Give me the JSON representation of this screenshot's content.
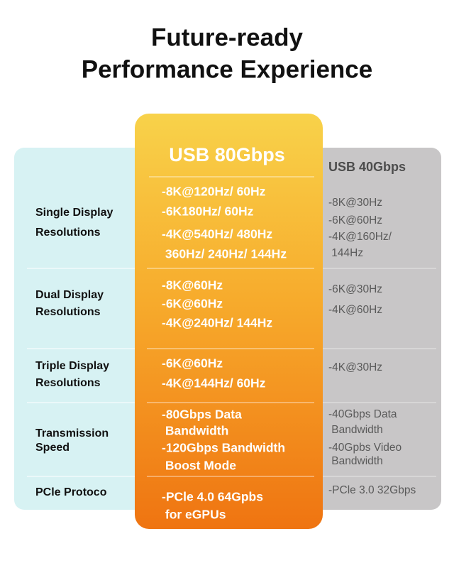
{
  "title": [
    "Future-ready",
    "Performance Experience"
  ],
  "table": {
    "columns": [
      "USB 80Gbps",
      "USB 40Gbps"
    ],
    "rows": [
      {
        "label": [
          "Single Display",
          "Resolutions"
        ],
        "usb80": [
          "-8K@120Hz/ 60Hz",
          "-6K180Hz/ 60Hz",
          "-4K@540Hz/ 480Hz",
          " 360Hz/ 240Hz/ 144Hz"
        ],
        "usb40": [
          "-8K@30Hz",
          "-6K@60Hz",
          "-4K@160Hz/",
          " 144Hz"
        ]
      },
      {
        "label": [
          "Dual Display",
          "Resolutions"
        ],
        "usb80": [
          "-8K@60Hz",
          "-6K@60Hz",
          "-4K@240Hz/ 144Hz"
        ],
        "usb40": [
          "-6K@30Hz",
          "-4K@60Hz"
        ]
      },
      {
        "label": [
          "Triple Display",
          "Resolutions"
        ],
        "usb80": [
          "-6K@60Hz",
          "-4K@144Hz/ 60Hz"
        ],
        "usb40": [
          "-4K@30Hz"
        ]
      },
      {
        "label": [
          "Transmission",
          "Speed"
        ],
        "usb80": [
          "-80Gbps Data",
          " Bandwidth",
          "-120Gbps Bandwidth",
          " Boost Mode"
        ],
        "usb40": [
          "-40Gbps Data",
          " Bandwidth",
          "-40Gpbs Video",
          " Bandwidth"
        ]
      },
      {
        "label": [
          "PCle Protoco"
        ],
        "usb80": [
          "-PCle 4.0 64Gpbs",
          " for eGPUs"
        ],
        "usb40": [
          "-PCle 3.0 32Gbps"
        ]
      }
    ]
  }
}
